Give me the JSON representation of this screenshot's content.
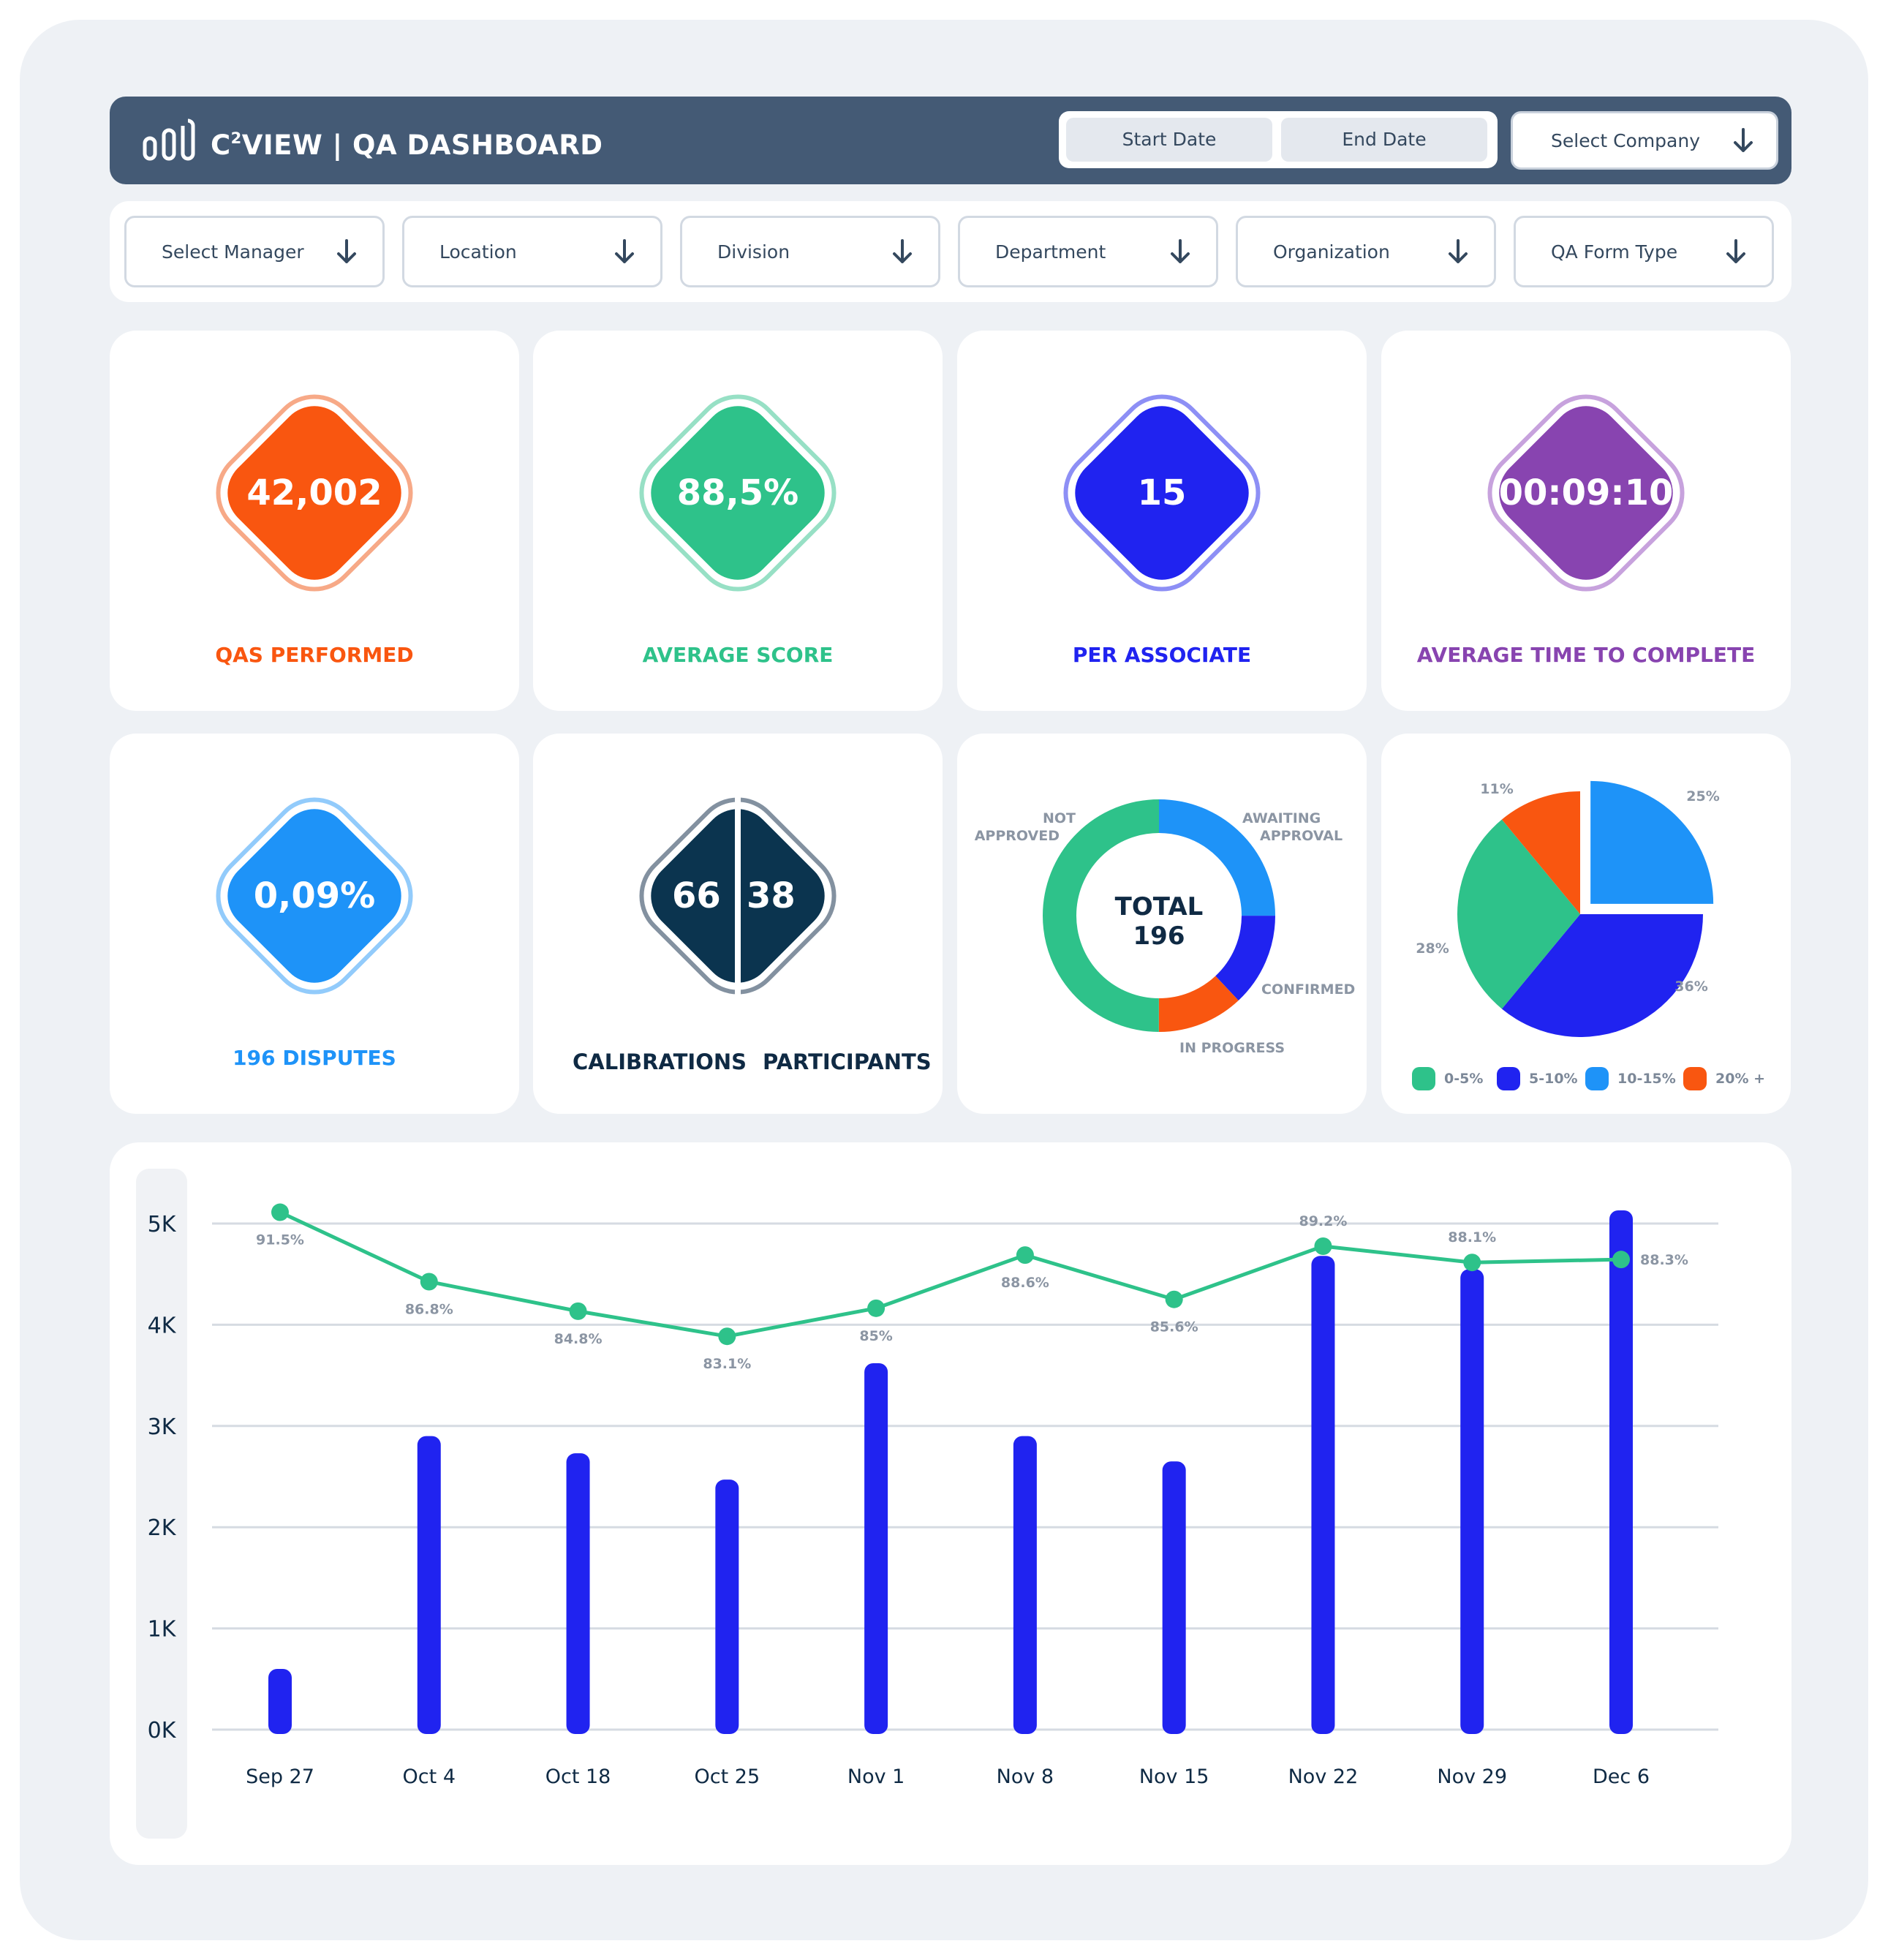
{
  "header": {
    "title_prefix": "C",
    "title_superscript": "2",
    "title_suffix": "VIEW | QA DASHBOARD",
    "start_date_label": "Start Date",
    "end_date_label": "End Date",
    "company_select_label": "Select Company",
    "logo_icon": "bar-chart-logo-icon"
  },
  "filters": [
    {
      "label": "Select Manager"
    },
    {
      "label": "Location"
    },
    {
      "label": "Division"
    },
    {
      "label": "Department"
    },
    {
      "label": "Organization"
    },
    {
      "label": "QA Form Type"
    }
  ],
  "kpis": {
    "qas_performed": {
      "value": "42,002",
      "label": "QAS PERFORMED",
      "color": "#f95610",
      "ring": "#f7a987"
    },
    "average_score": {
      "value": "88,5%",
      "label": "AVERAGE SCORE",
      "color": "#2ec28a",
      "ring": "#97e0c5"
    },
    "per_associate": {
      "value": "15",
      "label": "PER ASSOCIATE",
      "color": "#2023f0",
      "ring": "#8d8ff5"
    },
    "avg_time": {
      "value": "00:09:10",
      "label": "AVERAGE TIME TO COMPLETE",
      "color": "#8844b0",
      "ring": "#c7a2dd"
    },
    "disputes": {
      "value": "0,09%",
      "label": "196 DISPUTES",
      "color": "#1e93f8",
      "ring": "#92cbfb"
    },
    "calibrations": {
      "value": "66",
      "label": "CALIBRATIONS",
      "color": "#0b344f",
      "ring": "#8391a0"
    },
    "participants": {
      "value": "38",
      "label": "PARTICIPANTS"
    }
  },
  "donut": {
    "center_title": "TOTAL",
    "center_value": "196",
    "segments": [
      {
        "name": "AWAITING APPROVAL",
        "value": 25,
        "color": "#1e93f8"
      },
      {
        "name": "CONFIRMED",
        "value": 13,
        "color": "#2023f0"
      },
      {
        "name": "IN PROGRESS",
        "value": 12,
        "color": "#f95610"
      },
      {
        "name": "NOT APPROVED",
        "value": 50,
        "color": "#2ec28a"
      }
    ],
    "label_awaiting_1": "AWAITING",
    "label_awaiting_2": "APPROVAL",
    "label_not_1": "NOT",
    "label_not_2": "APPROVED",
    "label_confirmed": "CONFIRMED",
    "label_in_progress": "IN PROGRESS"
  },
  "pie": {
    "slices": [
      {
        "name": "10-15%",
        "value": 25,
        "label": "25%",
        "color": "#1e93f8"
      },
      {
        "name": "5-10%",
        "value": 36,
        "label": "36%",
        "color": "#2023f0"
      },
      {
        "name": "0-5%",
        "value": 28,
        "label": "28%",
        "color": "#2ec28a"
      },
      {
        "name": "20% +",
        "value": 11,
        "label": "11%",
        "color": "#f95610"
      }
    ],
    "legend": [
      {
        "label": "0-5%",
        "color": "#2ec28a"
      },
      {
        "label": "5-10%",
        "color": "#2023f0"
      },
      {
        "label": "10-15%",
        "color": "#1e93f8"
      },
      {
        "label": "20% +",
        "color": "#f95610"
      }
    ]
  },
  "chart_data": {
    "type": "bar",
    "categories": [
      "Sep 27",
      "Oct 4",
      "Oct 18",
      "Oct 25",
      "Nov 1",
      "Nov 8",
      "Nov 15",
      "Nov 22",
      "Nov 29",
      "Dec 6"
    ],
    "y_ticks": [
      "0K",
      "1K",
      "2K",
      "3K",
      "4K",
      "5K"
    ],
    "ylim": [
      0,
      5000
    ],
    "grid": true,
    "bar_color": "#2023f0",
    "line_color": "#2ec28a",
    "series": [
      {
        "type": "bar",
        "values": [
          600,
          2900,
          2730,
          2470,
          3620,
          2900,
          2650,
          4680,
          4550,
          5130
        ]
      },
      {
        "type": "line",
        "values": [
          91.5,
          86.8,
          84.8,
          83.1,
          85,
          88.6,
          85.6,
          89.2,
          88.1,
          88.3
        ],
        "labels": [
          "91.5%",
          "86.8%",
          "84.8%",
          "83.1%",
          "85%",
          "88.6%",
          "85.6%",
          "89.2%",
          "88.1%",
          "88.3%"
        ]
      }
    ]
  }
}
